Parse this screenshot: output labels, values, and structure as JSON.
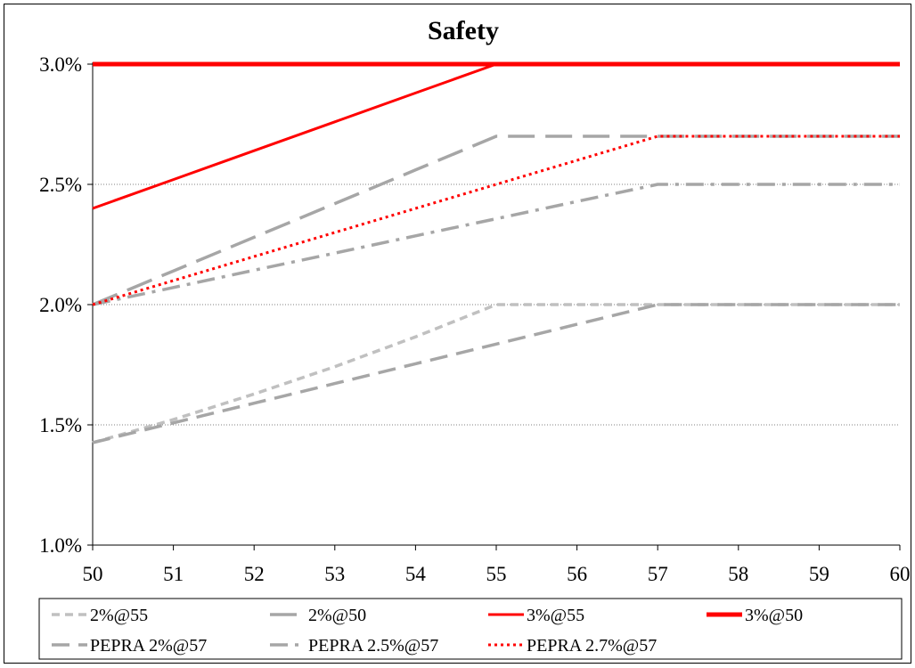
{
  "chart_data": {
    "type": "line",
    "title": "Safety",
    "xlabel": "",
    "ylabel": "",
    "x": [
      50,
      51,
      52,
      53,
      54,
      55,
      56,
      57,
      58,
      59,
      60
    ],
    "xlim": [
      50,
      60
    ],
    "ylim": [
      1.0,
      3.0
    ],
    "y_ticks": [
      "1.0%",
      "1.5%",
      "2.0%",
      "2.5%",
      "3.0%"
    ],
    "x_ticks": [
      "50",
      "51",
      "52",
      "53",
      "54",
      "55",
      "56",
      "57",
      "58",
      "59",
      "60"
    ],
    "grid": "horizontal dotted",
    "legend_position": "bottom",
    "series": [
      {
        "name": "2%@55",
        "color": "#c0c0c0",
        "style": "short-dash",
        "width": 3.5,
        "values": [
          1.426,
          1.522,
          1.628,
          1.742,
          1.866,
          2.0,
          2.0,
          2.0,
          2.0,
          2.0,
          2.0
        ]
      },
      {
        "name": "2%@50",
        "color": "#a6a6a6",
        "style": "long-dash",
        "width": 3.5,
        "values": [
          2.0,
          2.14,
          2.28,
          2.42,
          2.56,
          2.7,
          2.7,
          2.7,
          2.7,
          2.7,
          2.7
        ]
      },
      {
        "name": "3%@55",
        "color": "#ff0000",
        "style": "solid",
        "width": 3,
        "values": [
          2.4,
          2.52,
          2.64,
          2.76,
          2.88,
          3.0,
          3.0,
          3.0,
          3.0,
          3.0,
          3.0
        ]
      },
      {
        "name": "3%@50",
        "color": "#ff0000",
        "style": "solid",
        "width": 5,
        "values": [
          3.0,
          3.0,
          3.0,
          3.0,
          3.0,
          3.0,
          3.0,
          3.0,
          3.0,
          3.0,
          3.0
        ]
      },
      {
        "name": "PEPRA 2%@57",
        "color": "#a6a6a6",
        "style": "dash",
        "width": 3.5,
        "values": [
          1.426,
          1.508,
          1.59,
          1.672,
          1.754,
          1.836,
          1.918,
          2.0,
          2.0,
          2.0,
          2.0
        ]
      },
      {
        "name": "PEPRA 2.5%@57",
        "color": "#a6a6a6",
        "style": "dash-dot",
        "width": 3.5,
        "values": [
          2.0,
          2.071,
          2.143,
          2.214,
          2.286,
          2.357,
          2.429,
          2.5,
          2.5,
          2.5,
          2.5
        ]
      },
      {
        "name": "PEPRA 2.7%@57",
        "color": "#ff0000",
        "style": "dotted",
        "width": 3,
        "values": [
          2.0,
          2.1,
          2.2,
          2.3,
          2.4,
          2.5,
          2.6,
          2.7,
          2.7,
          2.7,
          2.7
        ]
      }
    ]
  }
}
